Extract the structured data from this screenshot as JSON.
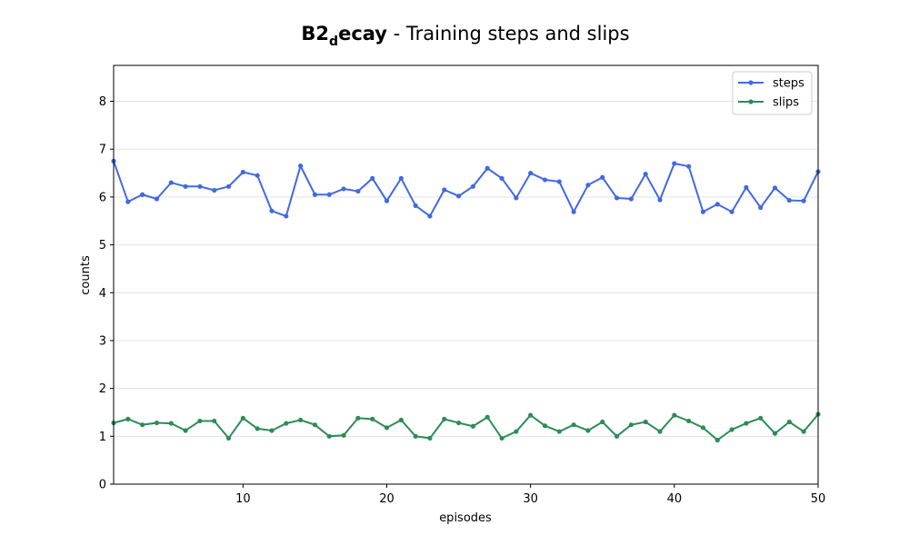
{
  "chart_data": {
    "type": "line",
    "title_bold": "B2",
    "title_sub": "d",
    "title_bold_tail": "ecay",
    "title_rest": " - Training steps and slips",
    "xlabel": "episodes",
    "ylabel": "counts",
    "xlim": [
      1,
      50
    ],
    "ylim": [
      0,
      8.75
    ],
    "xticks": [
      10,
      20,
      30,
      40,
      50
    ],
    "yticks": [
      0,
      1,
      2,
      3,
      4,
      5,
      6,
      7,
      8
    ],
    "grid": "horizontal",
    "legend_position": "top-right",
    "x": [
      1,
      2,
      3,
      4,
      5,
      6,
      7,
      8,
      9,
      10,
      11,
      12,
      13,
      14,
      15,
      16,
      17,
      18,
      19,
      20,
      21,
      22,
      23,
      24,
      25,
      26,
      27,
      28,
      29,
      30,
      31,
      32,
      33,
      34,
      35,
      36,
      37,
      38,
      39,
      40,
      41,
      42,
      43,
      44,
      45,
      46,
      47,
      48,
      49,
      50
    ],
    "series": [
      {
        "name": "steps",
        "color": "#4169e1",
        "values": [
          6.75,
          5.9,
          6.05,
          5.96,
          6.3,
          6.22,
          6.22,
          6.14,
          6.22,
          6.52,
          6.45,
          5.71,
          5.6,
          6.65,
          6.05,
          6.05,
          6.17,
          6.12,
          6.39,
          5.92,
          6.39,
          5.82,
          5.6,
          6.15,
          6.02,
          6.22,
          6.6,
          6.39,
          5.98,
          6.5,
          6.36,
          6.32,
          5.69,
          6.25,
          6.41,
          5.98,
          5.96,
          6.48,
          5.94,
          6.7,
          6.64,
          5.69,
          5.85,
          5.69,
          6.2,
          5.78,
          6.19,
          5.93,
          5.92,
          6.53
        ]
      },
      {
        "name": "slips",
        "color": "#2e8b57",
        "values": [
          1.28,
          1.36,
          1.24,
          1.28,
          1.27,
          1.12,
          1.32,
          1.32,
          0.96,
          1.38,
          1.16,
          1.12,
          1.27,
          1.34,
          1.24,
          1.0,
          1.02,
          1.38,
          1.36,
          1.18,
          1.34,
          1.0,
          0.96,
          1.36,
          1.28,
          1.21,
          1.4,
          0.96,
          1.1,
          1.44,
          1.22,
          1.1,
          1.24,
          1.12,
          1.3,
          1.0,
          1.24,
          1.3,
          1.1,
          1.44,
          1.32,
          1.18,
          0.92,
          1.14,
          1.27,
          1.38,
          1.06,
          1.3,
          1.1,
          1.46
        ]
      }
    ]
  }
}
